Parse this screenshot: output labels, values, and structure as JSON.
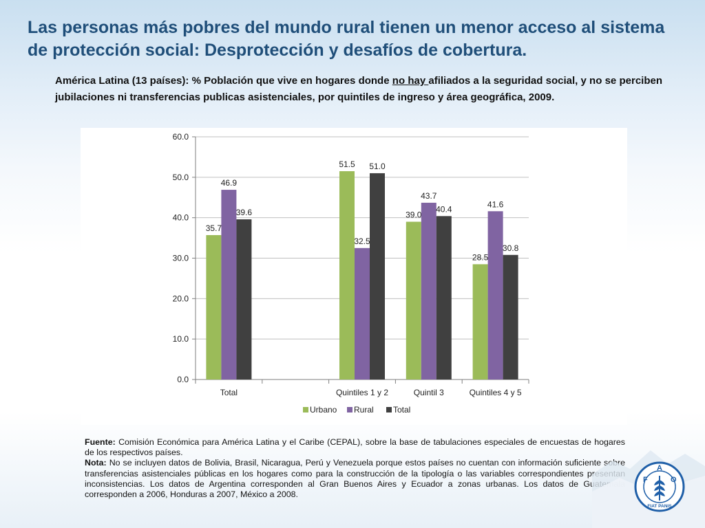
{
  "header": {
    "title": "Las personas más pobres del mundo rural tienen un menor acceso al sistema de protección social: Desprotección y desafíos de cobertura.",
    "subtitle_before": "América Latina (13 países): % Población que vive en hogares donde ",
    "subtitle_underlined": "no hay ",
    "subtitle_after": "afiliados a la seguridad social, y no se perciben jubilaciones ni transferencias publicas asistenciales, por quintiles de ingreso y área geográfica, 2009."
  },
  "chart_data": {
    "type": "bar",
    "title": "",
    "xlabel": "",
    "ylabel": "",
    "categories": [
      "Total",
      "",
      "Quintiles 1 y 2",
      "Quintil 3",
      "Quintiles 4 y 5"
    ],
    "series": [
      {
        "name": "Urbano",
        "color": "#9bbb59",
        "values": [
          35.7,
          null,
          51.5,
          39.0,
          28.5
        ],
        "labels": [
          "35.7",
          "",
          "51.5",
          "39.0",
          "28.5"
        ]
      },
      {
        "name": "Rural",
        "color": "#8064a2",
        "values": [
          46.9,
          null,
          32.5,
          43.7,
          41.6
        ],
        "labels": [
          "46.9",
          "",
          "32.5",
          "43.7",
          "41.6"
        ]
      },
      {
        "name": "Total",
        "color": "#404040",
        "values": [
          39.6,
          null,
          51.0,
          40.4,
          30.8
        ],
        "labels": [
          "39.6",
          "",
          "51.0",
          "40.4",
          "30.8"
        ]
      }
    ],
    "ylim": [
      0,
      60
    ],
    "yticks": [
      "0.0",
      "10.0",
      "20.0",
      "30.0",
      "40.0",
      "50.0",
      "60.0"
    ],
    "grid": true,
    "legend": "bottom"
  },
  "notes": {
    "fuente_label": "Fuente:",
    "fuente_text": " Comisión Económica para América Latina y el Caribe (CEPAL), sobre la base de tabulaciones especiales de encuestas de hogares de los respectivos países.",
    "nota_label": "Nota:",
    "nota_text": " No se incluyen datos de Bolivia, Brasil, Nicaragua, Perú y Venezuela porque estos países no cuentan con información suficiente sobre transferencias asistenciales públicas en los hogares como para la construcción de la tipología o las variables correspondientes presentan inconsistencias. Los datos de Argentina corresponden al Gran Buenos Aires y Ecuador a zonas urbanas. Los datos de Guatemala corresponden a 2006, Honduras a 2007, México a 2008."
  },
  "logo": {
    "letters": [
      "F",
      "A",
      "O"
    ],
    "motto": "FIAT PANIS",
    "color": "#1f5fa8"
  }
}
